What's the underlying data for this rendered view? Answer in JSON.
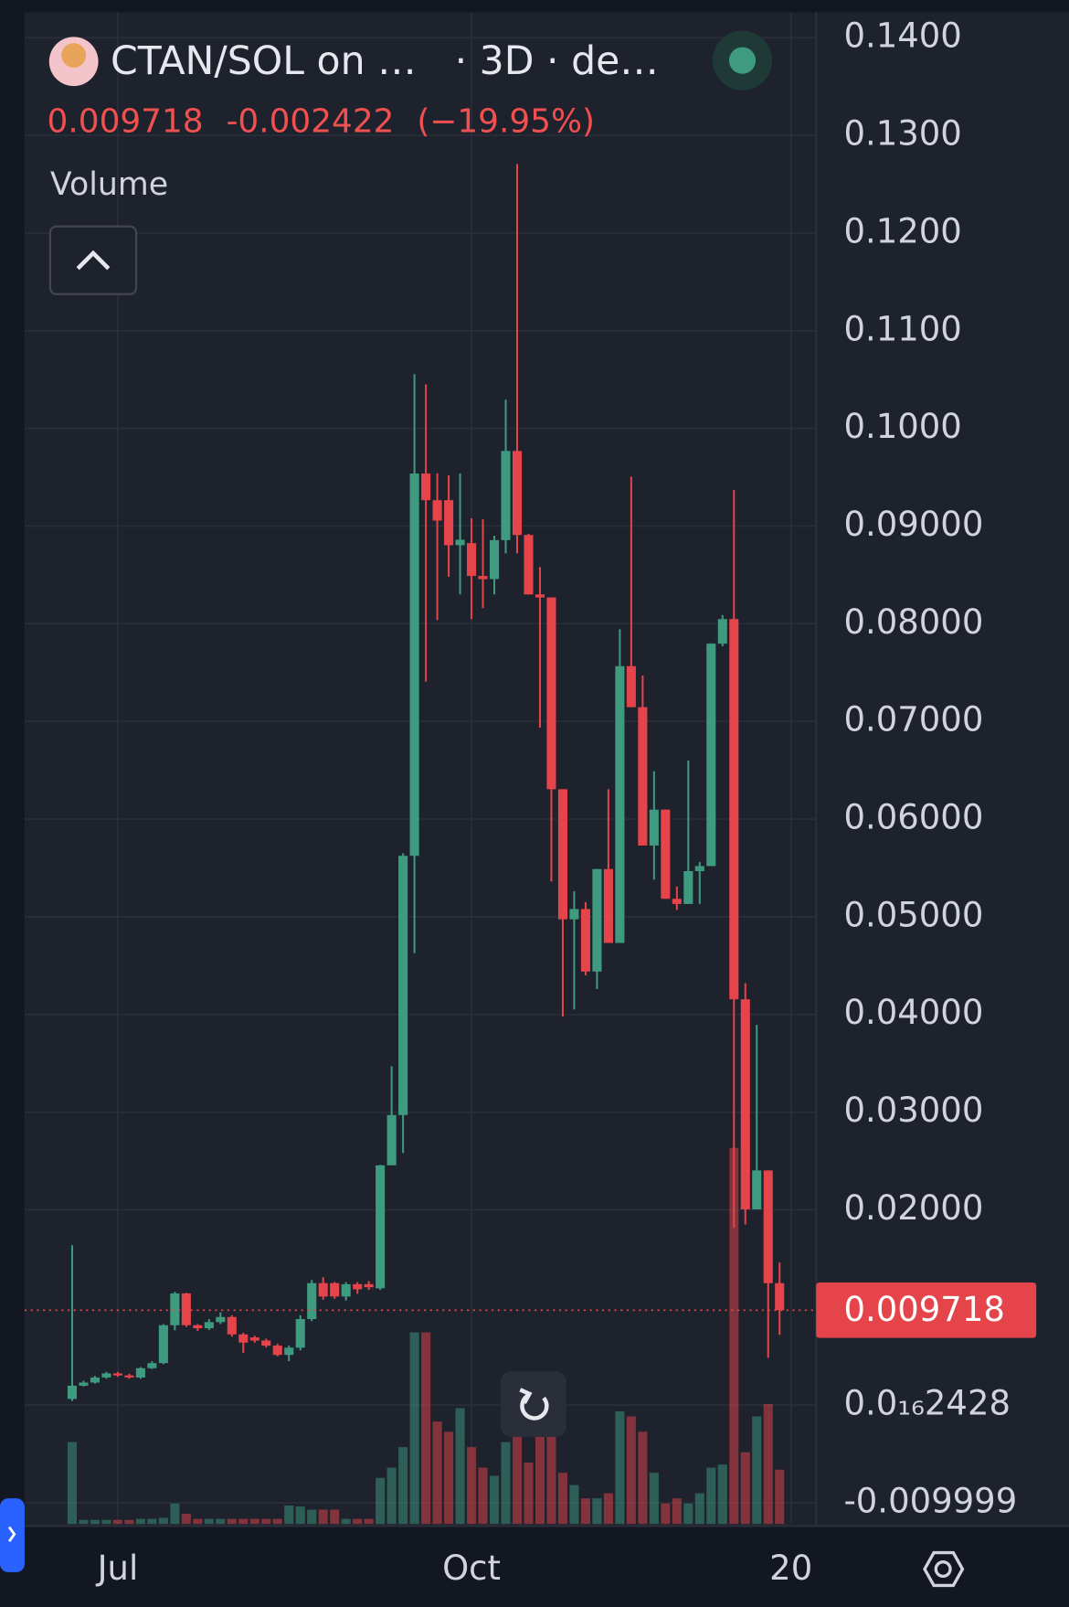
{
  "chart_data": {
    "type": "candlestick",
    "title": "CTAN/SOL on …",
    "subtitle": "· 3D · de…",
    "last_price": 0.009718,
    "change": -0.002422,
    "change_pct": {
      "value": -19.95,
      "label": "(−19.95%)"
    },
    "volume_label": "Volume",
    "up_color": "#3e9b80",
    "down_color": "#e5444a",
    "grid": true,
    "open": [
      0.00063,
      0.00199,
      0.00231,
      0.00283,
      0.00325,
      0.00304,
      0.00283,
      0.00378,
      0.0043,
      0.00818,
      0.01144,
      0.00818,
      0.00787,
      0.0085,
      0.00902,
      0.00724,
      0.00693,
      0.00661,
      0.00609,
      0.00514,
      0.00588,
      0.00881,
      0.01249,
      0.01249,
      0.01112,
      0.01238,
      0.01238,
      0.01196,
      0.02455,
      0.0297,
      0.05624,
      0.09538,
      0.09265,
      0.09265,
      0.08804,
      0.08825,
      0.08489,
      0.08457,
      0.08856,
      0.09769,
      0.08909,
      0.083,
      0.08269,
      0.06306,
      0.04974,
      0.05079,
      0.04439,
      0.05488,
      0.04732,
      0.07566,
      0.07146,
      0.05729,
      0.06097,
      0.05184,
      0.05131,
      0.05467,
      0.05519,
      0.07796,
      0.08048,
      0.04155,
      0.02004,
      0.02403,
      0.01249
    ],
    "high": [
      0.01637,
      0.0025,
      0.003,
      0.0034,
      0.0034,
      0.0032,
      0.0039,
      0.0045,
      0.0083,
      0.0116,
      0.0115,
      0.0083,
      0.0088,
      0.0095,
      0.0092,
      0.0074,
      0.0071,
      0.0068,
      0.0063,
      0.0061,
      0.0092,
      0.0128,
      0.0131,
      0.0126,
      0.0126,
      0.0126,
      0.0127,
      0.0246,
      0.0347,
      0.0565,
      0.10556,
      0.10451,
      0.0954,
      0.0952,
      0.09538,
      0.0908,
      0.0907,
      0.089,
      0.10294,
      0.12707,
      0.0892,
      0.0858,
      0.08269,
      0.06306,
      0.0526,
      0.0515,
      0.0549,
      0.06306,
      0.07943,
      0.09507,
      0.0747,
      0.0649,
      0.06097,
      0.0531,
      0.066,
      0.0556,
      0.078,
      0.0809,
      0.0937,
      0.0432,
      0.03893,
      0.02403,
      0.0146
    ],
    "low": [
      0.00042,
      0.0019,
      0.0022,
      0.0027,
      0.0029,
      0.0027,
      0.0027,
      0.0037,
      0.0042,
      0.00766,
      0.008,
      0.0076,
      0.0077,
      0.0083,
      0.007,
      0.00535,
      0.0064,
      0.0059,
      0.005,
      0.0045,
      0.0056,
      0.0086,
      0.0108,
      0.0109,
      0.0107,
      0.0114,
      0.0118,
      0.0118,
      0.0246,
      0.02581,
      0.04627,
      0.07408,
      0.08038,
      0.0848,
      0.083,
      0.08048,
      0.0816,
      0.083,
      0.0872,
      0.0872,
      0.083,
      0.06936,
      0.05362,
      0.03977,
      0.0405,
      0.044,
      0.0426,
      0.04732,
      0.04732,
      0.07146,
      0.05729,
      0.0538,
      0.05184,
      0.0507,
      0.05131,
      0.05131,
      0.05519,
      0.0777,
      0.01815,
      0.0185,
      0.02004,
      0.00483,
      0.0072
    ],
    "close": [
      0.00199,
      0.00231,
      0.00283,
      0.00325,
      0.00304,
      0.00283,
      0.00378,
      0.0043,
      0.00818,
      0.01144,
      0.00818,
      0.00787,
      0.0085,
      0.00902,
      0.00724,
      0.0064,
      0.00661,
      0.00609,
      0.00514,
      0.00588,
      0.00881,
      0.01249,
      0.01112,
      0.01112,
      0.01238,
      0.01186,
      0.01207,
      0.02455,
      0.0297,
      0.05624,
      0.09538,
      0.09265,
      0.09056,
      0.08804,
      0.0886,
      0.08489,
      0.08457,
      0.08856,
      0.09769,
      0.08909,
      0.083,
      0.08269,
      0.06306,
      0.04974,
      0.05079,
      0.04439,
      0.05488,
      0.04732,
      0.07566,
      0.07146,
      0.05729,
      0.06097,
      0.05184,
      0.05131,
      0.05467,
      0.05519,
      0.07796,
      0.08048,
      0.04155,
      0.02004,
      0.02403,
      0.01249,
      0.009718
    ],
    "volume": [
      80,
      4,
      4,
      4,
      4,
      4,
      5,
      5,
      6,
      20,
      10,
      5,
      5,
      5,
      5,
      5,
      5,
      5,
      5,
      18,
      17,
      14,
      14,
      14,
      5,
      5,
      5,
      45,
      55,
      75,
      187,
      187,
      100,
      90,
      113,
      75,
      55,
      47,
      80,
      105,
      60,
      105,
      85,
      50,
      38,
      25,
      25,
      30,
      110,
      105,
      90,
      50,
      20,
      25,
      20,
      30,
      55,
      58,
      367,
      70,
      105,
      117,
      53
    ],
    "vlim": [
      0,
      400
    ],
    "ylim": [
      -0.01217,
      0.14386
    ],
    "yticks": [
      {
        "value": 0.14,
        "label": "0.1400"
      },
      {
        "value": 0.13,
        "label": "0.1300"
      },
      {
        "value": 0.12,
        "label": "0.1200"
      },
      {
        "value": 0.11,
        "label": "0.1100"
      },
      {
        "value": 0.1,
        "label": "0.1000"
      },
      {
        "value": 0.09,
        "label": "0.09000"
      },
      {
        "value": 0.08,
        "label": "0.08000"
      },
      {
        "value": 0.07,
        "label": "0.07000"
      },
      {
        "value": 0.06,
        "label": "0.06000"
      },
      {
        "value": 0.05,
        "label": "0.05000"
      },
      {
        "value": 0.04,
        "label": "0.04000"
      },
      {
        "value": 0.03,
        "label": "0.03000"
      },
      {
        "value": 0.02,
        "label": "0.02000"
      },
      {
        "value": 2.428e-17,
        "label": "0.0₁₆2428"
      },
      -0.009999
    ],
    "xlim": [
      -4.17,
      65.2
    ],
    "xticks": [
      {
        "value": 4,
        "label": "Jul"
      },
      {
        "value": 35,
        "label": "Oct"
      },
      {
        "value": 63,
        "label": "20"
      }
    ]
  }
}
